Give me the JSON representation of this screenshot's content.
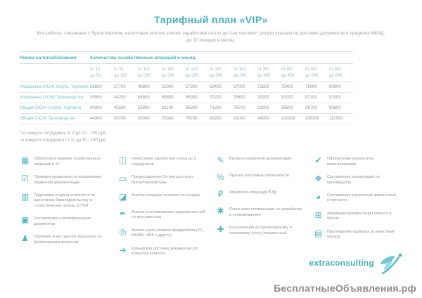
{
  "page": {
    "title": "Тарифный план «VIP»",
    "subtitle": "Все работы, связанные с бухгалтерским, налоговым учетом, расчет заработной платы до 3-ех человек*, услуги курьера по доставке документов в пределах МКАД, до 10 поездок в месяц."
  },
  "table": {
    "row_header": "Режим налогообложения",
    "col_header": "Количество хозяйственных операций в месяц",
    "columns": [
      {
        "from": "от 10",
        "to": "до 50"
      },
      {
        "from": "от 51",
        "to": "до 100"
      },
      {
        "from": "от 101",
        "to": "до 150"
      },
      {
        "from": "от 151",
        "to": "до 200"
      },
      {
        "from": "от 201",
        "to": "до 250"
      },
      {
        "from": "от 251",
        "to": "до 300"
      },
      {
        "from": "от 301",
        "to": "до 350"
      },
      {
        "from": "от 351",
        "to": "до 400"
      },
      {
        "from": "от 401",
        "to": "до 450"
      },
      {
        "from": "от 451",
        "to": "до 500"
      },
      {
        "from": "от 501",
        "to": "до 600"
      }
    ],
    "rows": [
      {
        "label": "Упрощенка (УСН) Услуги, Торговля",
        "values": [
          33600,
          37700,
          46800,
          52000,
          57200,
          62400,
          67000,
          72800,
          75400,
          78000,
          80600
        ]
      },
      {
        "label": "Упрощенка (УСН) Производство",
        "values": [
          39000,
          44200,
          54600,
          59800,
          65000,
          70200,
          75400,
          79300,
          83200,
          87100,
          91000
        ]
      },
      {
        "label": "Общая (ОСН) Услуги, Торговля",
        "values": [
          40300,
          45500,
          55900,
          61100,
          66300,
          71500,
          76700,
          81900,
          85800,
          89700,
          93600
        ]
      },
      {
        "label": "Общая (ОСН) Производство",
        "values": [
          44300,
          50700,
          65000,
          70300,
          76700,
          83200,
          91000,
          94900,
          100100,
          105300,
          110500
        ]
      }
    ]
  },
  "footnotes": [
    "*за каждого сотрудника от 4 до 10 - 750 руб.",
    "за каждого сотрудника от 11 до 30 - 150 руб."
  ],
  "services": {
    "columns": [
      [
        {
          "icon": "calculator-1c-icon",
          "glyph": "▦",
          "text": "Обработка и ведение хозяйственных операций в 1С"
        },
        {
          "icon": "clipboard-check-icon",
          "glyph": "☑",
          "text": "Проверка правильности оформления первичной документации"
        },
        {
          "icon": "reports-binder-icon",
          "glyph": "▥",
          "text": "Подготовка и сдача отчетности по налоговому Законодательству, в статистические органы, в ГНИ"
        },
        {
          "icon": "documents-folder-icon",
          "glyph": "▣",
          "text": "Составление и систематизация документов"
        },
        {
          "icon": "office-chair-icon",
          "glyph": "♟",
          "text": "Обучение и инструктаж персонала по бухгалтерским вопросам"
        }
      ],
      [
        {
          "icon": "payroll-icon",
          "glyph": "◫",
          "text": "Начисление заработной платы до 3 сотрудников"
        },
        {
          "icon": "laptop-icon",
          "glyph": "▭",
          "text": "Предоставление On-line доступа к бухгалтерской базе"
        },
        {
          "icon": "stock-chart-icon",
          "glyph": "◪",
          "text": "Анализ товарных остатков на складах"
        },
        {
          "icon": "stamp-icon",
          "glyph": "✒",
          "text": "Анализ и отслеживание задолженностей по контрагентам"
        },
        {
          "icon": "asset-analysis-icon",
          "glyph": "◎",
          "text": "Анализ учета активов предприятия (ОС, МНМА, НМА и другое)"
        },
        {
          "icon": "courier-door-icon",
          "glyph": "➔",
          "text": "Курьерская доставка документов (от клиента/к клиенту)"
        }
      ],
      [
        {
          "icon": "invoice-pen-icon",
          "glyph": "✎",
          "text": "Выписка первичной документации"
        },
        {
          "icon": "percent-icon",
          "glyph": "%",
          "text": "Прогноз налоговых обязательств"
        },
        {
          "icon": "currency-cycle-icon",
          "glyph": "₽",
          "text": "Обработка операций ВЭД"
        },
        {
          "icon": "optimization-gear-icon",
          "glyph": "✱",
          "text": "Поиск схем оптимизации, их разработка и сопровождение"
        },
        {
          "icon": "pushpin-icon",
          "glyph": "✚",
          "text": "Консультация по бухгалтерскому и налоговому учету (письменные)"
        }
      ],
      [
        {
          "icon": "inventory-check-icon",
          "glyph": "✔",
          "text": "Оформление результатов инвентаризации"
        },
        {
          "icon": "calculation-cards-icon",
          "glyph": "❖",
          "text": "Составление калькуляций по производству"
        },
        {
          "icon": "pie-chart-icon",
          "glyph": "◕",
          "text": "Составление внутренней финансовой отчетности"
        },
        {
          "icon": "archive-box-icon",
          "glyph": "⊞",
          "text": "Архивация документации клиента в боксах"
        },
        {
          "icon": "audit-doc-icon",
          "glyph": "▤",
          "text": "Прохождение проверок за известный период"
        }
      ]
    ]
  },
  "footer": {
    "brand": "extraconsulting",
    "watermark": "БесплатныеОбъявления.рф"
  },
  "colors": {
    "accent": "#45b1bc",
    "accent_light": "#6fc0c9",
    "icon_teal": "#52b7c3",
    "text_gray": "#8d9499",
    "range_gray": "#9fb4bb",
    "rule_gray": "#d9dde0",
    "watermark_gray": "#8d8d8d"
  }
}
